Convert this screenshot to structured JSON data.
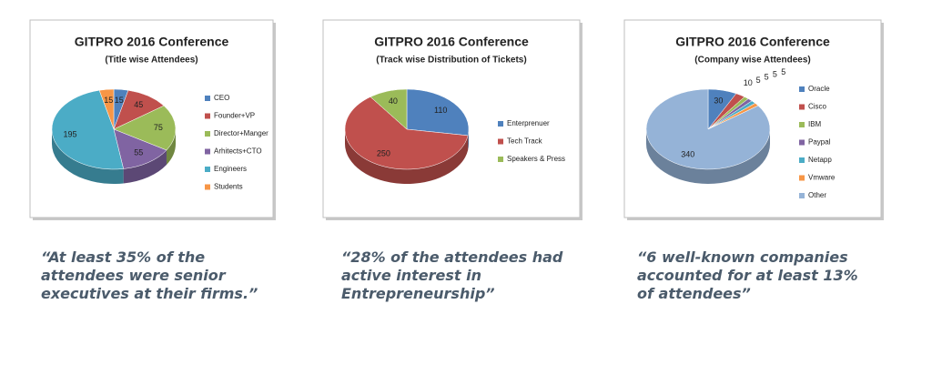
{
  "chart_data": [
    {
      "type": "pie",
      "title": "GITPRO 2016 Conference",
      "subtitle": "(Title wise Attendees)",
      "categories": [
        "CEO",
        "Founder+VP",
        "Director+Manger",
        "Arhitects+CTO",
        "Engineers",
        "Students"
      ],
      "values": [
        15,
        45,
        75,
        55,
        195,
        15
      ],
      "colors": [
        "#4f81bd",
        "#c0504d",
        "#9bbb59",
        "#8064a2",
        "#4bacc6",
        "#f79646"
      ],
      "caption": "“At least 35% of the attendees were senior executives at their firms.”"
    },
    {
      "type": "pie",
      "title": "GITPRO 2016 Conference",
      "subtitle": "(Track wise Distribution of Tickets)",
      "categories": [
        "Enterprenuer",
        "Tech Track",
        "Speakers & Press"
      ],
      "values": [
        110,
        250,
        40
      ],
      "colors": [
        "#4f81bd",
        "#c0504d",
        "#9bbb59"
      ],
      "caption": "“28% of the attendees had active interest in Entrepreneurship”"
    },
    {
      "type": "pie",
      "title": "GITPRO 2016 Conference",
      "subtitle": "(Company wise Attendees)",
      "categories": [
        "Oracle",
        "Cisco",
        "IBM",
        "Paypal",
        "Netapp",
        "Vmware",
        "Other"
      ],
      "values": [
        30,
        10,
        5,
        5,
        5,
        5,
        340
      ],
      "colors": [
        "#4f81bd",
        "#c0504d",
        "#9bbb59",
        "#8064a2",
        "#4bacc6",
        "#f79646",
        "#95b3d7"
      ],
      "caption": "“6 well-known companies accounted for at least 13% of attendees”"
    }
  ]
}
